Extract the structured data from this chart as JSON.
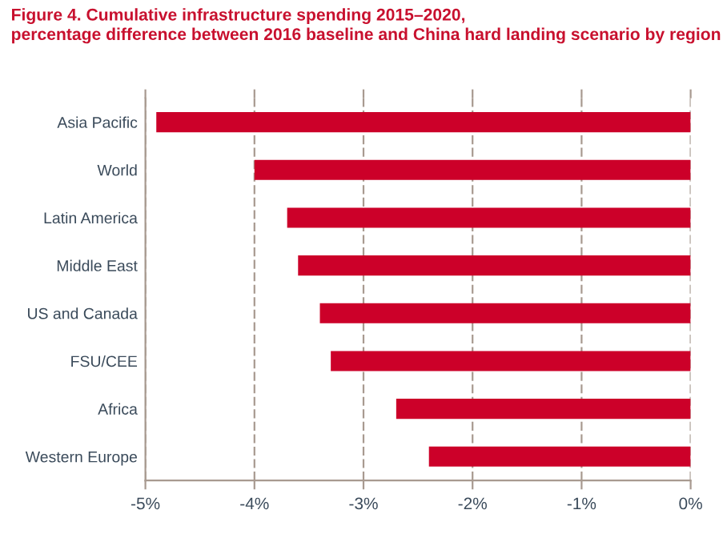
{
  "chart_data": {
    "type": "bar",
    "orientation": "horizontal",
    "title": "Figure 4. Cumulative infrastructure spending 2015–2020,\npercentage difference between 2016 baseline and China hard landing scenario by region",
    "categories": [
      "Asia Pacific",
      "World",
      "Latin America",
      "Middle East",
      "US and Canada",
      "FSU/CEE",
      "Africa",
      "Western Europe"
    ],
    "values": [
      -4.9,
      -4.0,
      -3.7,
      -3.6,
      -3.4,
      -3.3,
      -2.7,
      -2.4
    ],
    "color": "#cc0029",
    "xlim": [
      -5,
      0
    ],
    "xticks": [
      {
        "value": -5,
        "label": "-5%"
      },
      {
        "value": -4,
        "label": "-4%"
      },
      {
        "value": -3,
        "label": "-3%"
      },
      {
        "value": -2,
        "label": "-2%"
      },
      {
        "value": -1,
        "label": "-1%"
      },
      {
        "value": 0,
        "label": "0%"
      }
    ],
    "grid": "x"
  }
}
